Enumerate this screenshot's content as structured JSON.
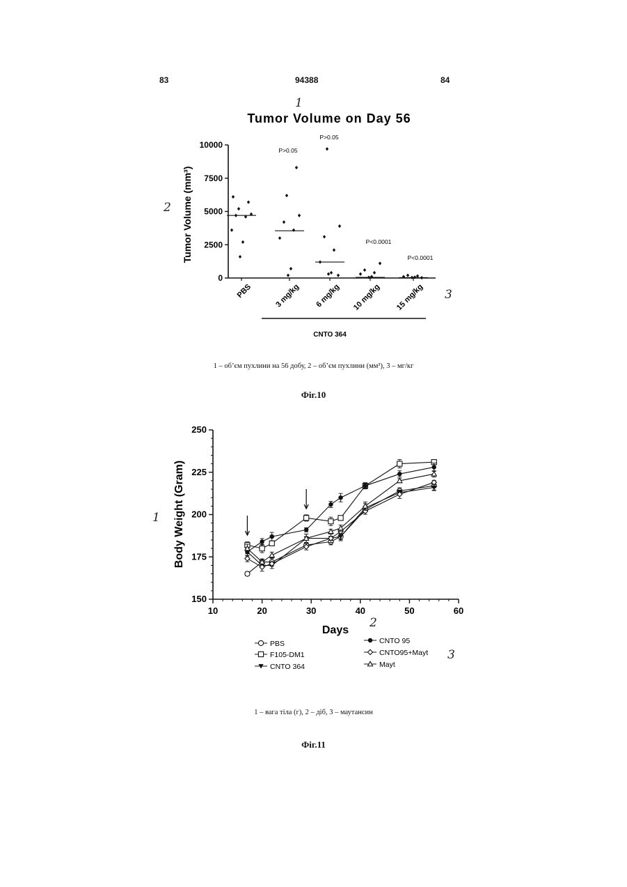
{
  "header": {
    "left_page": "83",
    "center_number": "94388",
    "right_page": "84"
  },
  "figure10": {
    "hand_marks": {
      "m1": "1",
      "m2": "2",
      "m3": "3"
    },
    "caption": "1 – об’єм пухлини на 56 добу, 2 – об’єм пухлини (мм³), 3 – мг/кг",
    "label": "Фіг.10",
    "chart_data": {
      "type": "scatter",
      "title": "Tumor Volume on Day 56",
      "ylabel": "Tumor Volume (mm³)",
      "ylim": [
        0,
        10000
      ],
      "y_ticks": [
        "0",
        "2500",
        "5000",
        "7500",
        "10000"
      ],
      "categories": [
        "PBS",
        "3 mg/kg",
        "6 mg/kg",
        "10 mg/kg",
        "15 mg/kg"
      ],
      "group_label": "CNTO 364",
      "pvalues": [
        "",
        "P>0.05",
        "P>0.05",
        "P<0.0001",
        "P<0.0001"
      ],
      "points": [
        [
          6100,
          5700,
          5200,
          4800,
          4700,
          4600,
          3600,
          2700,
          1600
        ],
        [
          8300,
          6200,
          4700,
          4200,
          3600,
          3000,
          700,
          200
        ],
        [
          9700,
          3900,
          3100,
          2100,
          1200,
          400,
          300,
          200
        ],
        [
          1100,
          600,
          400,
          300,
          100,
          50
        ],
        [
          200,
          150,
          100,
          60,
          40,
          20
        ]
      ],
      "medians": [
        4700,
        3550,
        1200,
        50,
        30
      ]
    }
  },
  "figure11": {
    "hand_marks": {
      "m1": "1",
      "m2": "2",
      "m3": "3"
    },
    "caption": "1 – вага тіла (г), 2 – діб, 3 – маутансин",
    "label": "Фіг.11",
    "chart_data": {
      "type": "line",
      "ylabel": "Body Weight (Gram)",
      "xlabel": "Days",
      "xlim": [
        10,
        60
      ],
      "ylim": [
        150,
        250
      ],
      "x_ticks": [
        "10",
        "20",
        "30",
        "40",
        "50",
        "60"
      ],
      "y_ticks": [
        "150",
        "175",
        "200",
        "225",
        "250"
      ],
      "x": [
        17,
        20,
        22,
        29,
        34,
        36,
        41,
        48,
        55
      ],
      "arrows_at_days": [
        17,
        29
      ],
      "series": [
        {
          "name": "PBS",
          "marker": "circle-open",
          "values": [
            165,
            172,
            172,
            182,
            184,
            187,
            203,
            214,
            217
          ]
        },
        {
          "name": "F105-DM1",
          "marker": "square-open",
          "values": [
            182,
            180,
            183,
            198,
            196,
            198,
            217,
            230,
            231
          ]
        },
        {
          "name": "CNTO 364",
          "marker": "triangle-down-filled",
          "values": [
            178,
            170,
            170,
            186,
            186,
            187,
            204,
            213,
            216
          ]
        },
        {
          "name": "CNTO 95",
          "marker": "circle-filled",
          "values": [
            178,
            184,
            187,
            191,
            206,
            210,
            217,
            224,
            228
          ]
        },
        {
          "name": "CNTO95+Mayt",
          "marker": "diamond-open",
          "values": [
            174,
            169,
            171,
            181,
            186,
            190,
            202,
            212,
            219
          ]
        },
        {
          "name": "Mayt",
          "marker": "triangle-up-open",
          "values": [
            180,
            172,
            176,
            186,
            190,
            192,
            205,
            220,
            224
          ]
        }
      ]
    }
  }
}
